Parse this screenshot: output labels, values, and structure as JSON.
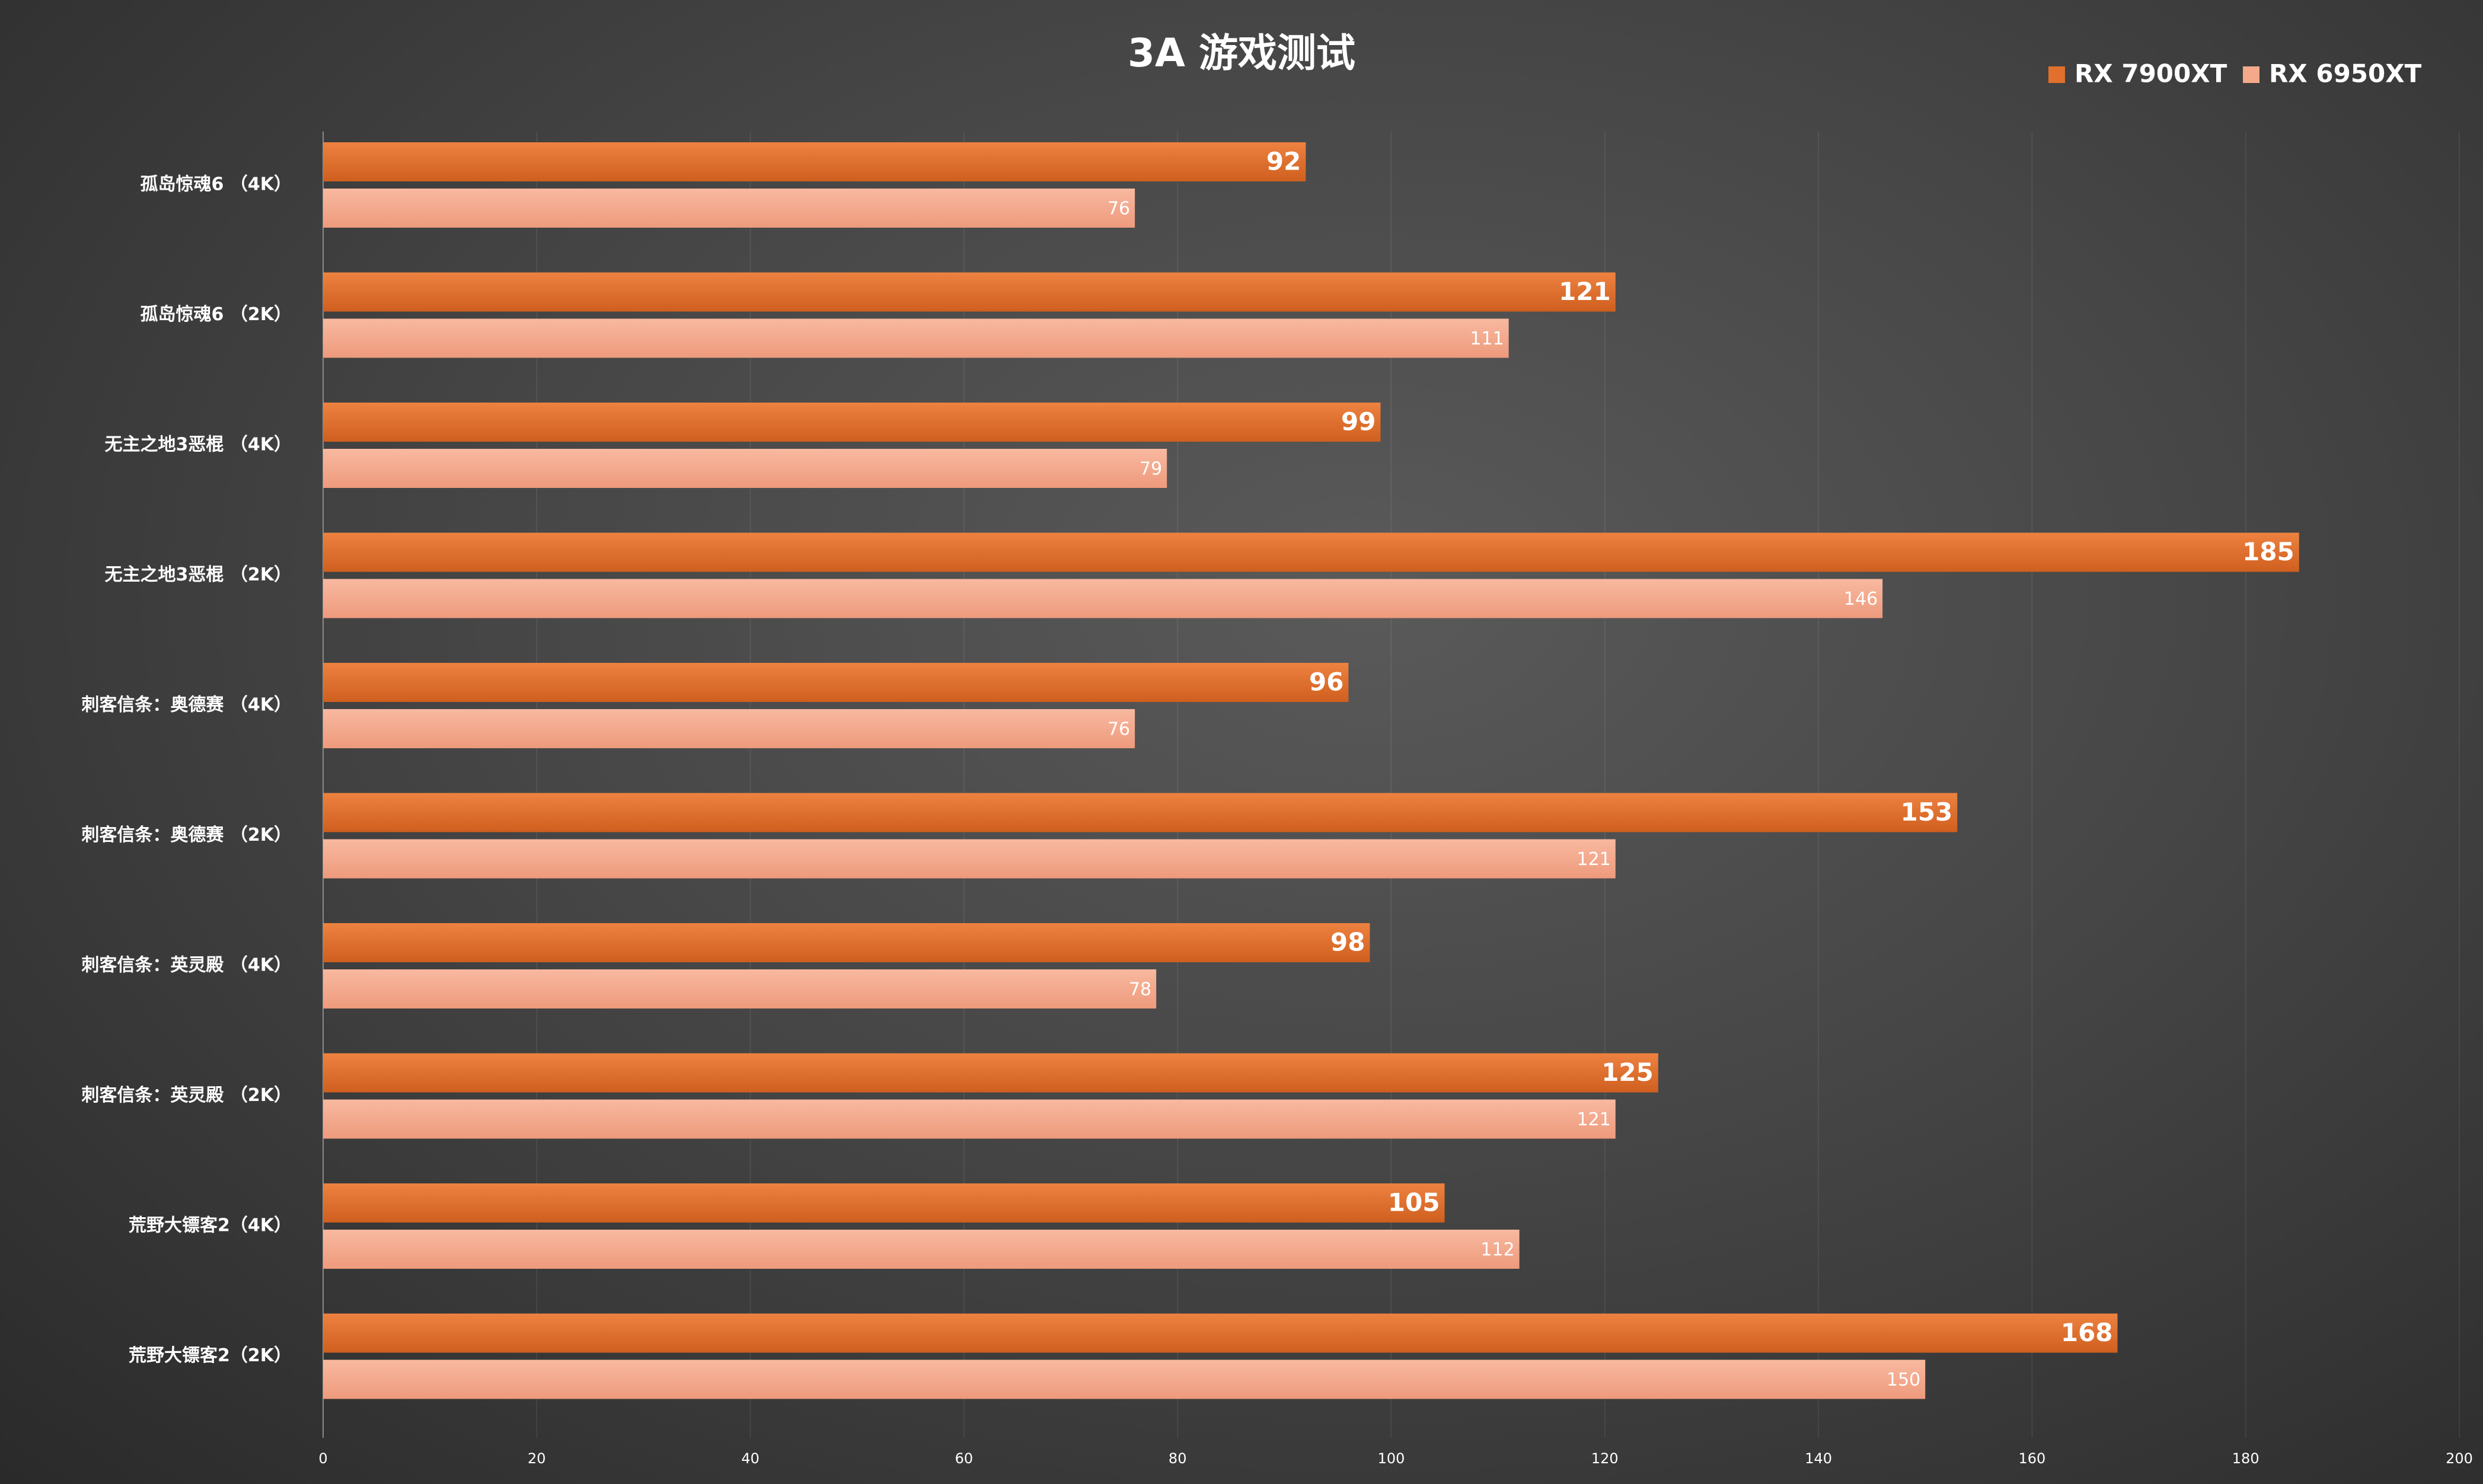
{
  "chart_data": {
    "type": "bar",
    "orientation": "horizontal",
    "title": "3A 游戏测试",
    "categories": [
      "孤岛惊魂6 （4K）",
      "孤岛惊魂6 （2K）",
      "无主之地3恶棍 （4K）",
      "无主之地3恶棍 （2K）",
      "刺客信条：奥德赛 （4K）",
      "刺客信条：奥德赛 （2K）",
      "刺客信条：英灵殿 （4K）",
      "刺客信条：英灵殿 （2K）",
      "荒野大镖客2（4K）",
      "荒野大镖客2（2K）"
    ],
    "series": [
      {
        "name": "RX 7900XT",
        "color": "#e0702c",
        "values": [
          92,
          121,
          99,
          185,
          96,
          153,
          98,
          125,
          105,
          168
        ]
      },
      {
        "name": "RX 6950XT",
        "color": "#f4a98a",
        "values": [
          76,
          111,
          79,
          146,
          76,
          121,
          78,
          121,
          112,
          150
        ]
      }
    ],
    "xlim": [
      0,
      200
    ],
    "xticks": [
      0,
      20,
      40,
      60,
      80,
      100,
      120,
      140,
      160,
      180,
      200
    ],
    "data_labels": true,
    "grid": true,
    "legend_position": "top-right"
  }
}
